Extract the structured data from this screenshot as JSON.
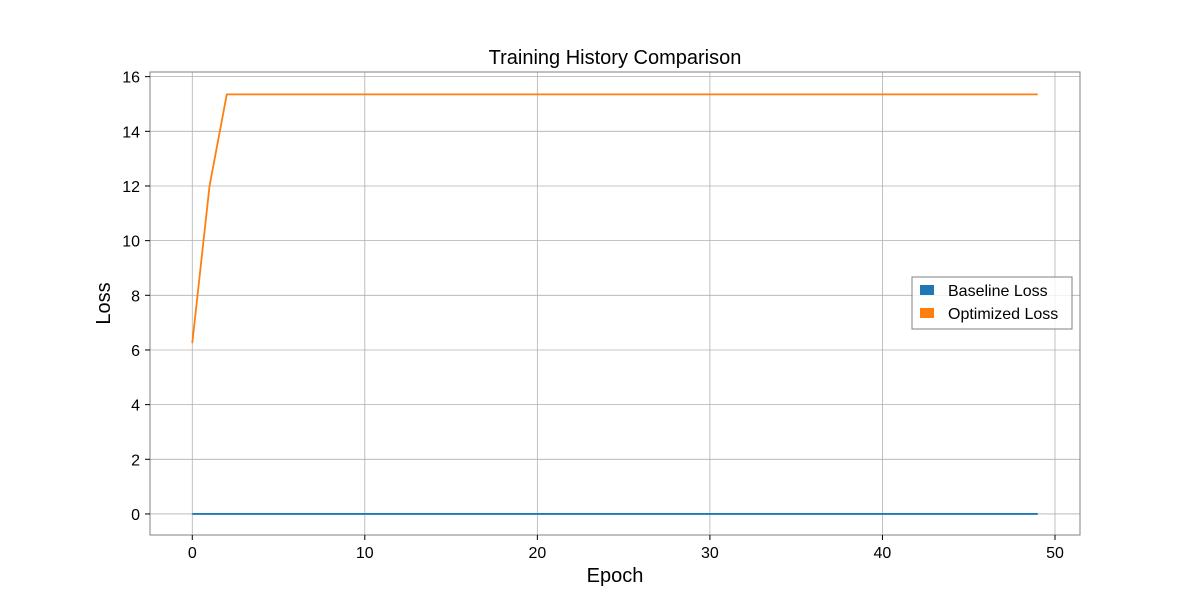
{
  "chart_data": {
    "type": "line",
    "title": "Training History Comparison",
    "xlabel": "Epoch",
    "ylabel": "Loss",
    "xlim": [
      -2.45,
      51.45
    ],
    "ylim": [
      -0.77,
      16.17
    ],
    "x_ticks": [
      0,
      10,
      20,
      30,
      40,
      50
    ],
    "y_ticks": [
      0,
      2,
      4,
      6,
      8,
      10,
      12,
      14,
      16
    ],
    "grid": true,
    "legend_position": "center-right",
    "x": [
      0,
      1,
      2,
      3,
      4,
      5,
      6,
      7,
      8,
      9,
      10,
      11,
      12,
      13,
      14,
      15,
      16,
      17,
      18,
      19,
      20,
      21,
      22,
      23,
      24,
      25,
      26,
      27,
      28,
      29,
      30,
      31,
      32,
      33,
      34,
      35,
      36,
      37,
      38,
      39,
      40,
      41,
      42,
      43,
      44,
      45,
      46,
      47,
      48,
      49
    ],
    "series": [
      {
        "name": "Baseline Loss",
        "color": "#1f77b4",
        "values": [
          0,
          0,
          0,
          0,
          0,
          0,
          0,
          0,
          0,
          0,
          0,
          0,
          0,
          0,
          0,
          0,
          0,
          0,
          0,
          0,
          0,
          0,
          0,
          0,
          0,
          0,
          0,
          0,
          0,
          0,
          0,
          0,
          0,
          0,
          0,
          0,
          0,
          0,
          0,
          0,
          0,
          0,
          0,
          0,
          0,
          0,
          0,
          0,
          0,
          0
        ]
      },
      {
        "name": "Optimized Loss",
        "color": "#ff7f0e",
        "values": [
          6.25,
          12.0,
          15.35,
          15.35,
          15.35,
          15.35,
          15.35,
          15.35,
          15.35,
          15.35,
          15.35,
          15.35,
          15.35,
          15.35,
          15.35,
          15.35,
          15.35,
          15.35,
          15.35,
          15.35,
          15.35,
          15.35,
          15.35,
          15.35,
          15.35,
          15.35,
          15.35,
          15.35,
          15.35,
          15.35,
          15.35,
          15.35,
          15.35,
          15.35,
          15.35,
          15.35,
          15.35,
          15.35,
          15.35,
          15.35,
          15.35,
          15.35,
          15.35,
          15.35,
          15.35,
          15.35,
          15.35,
          15.35,
          15.35,
          15.35
        ]
      }
    ]
  }
}
